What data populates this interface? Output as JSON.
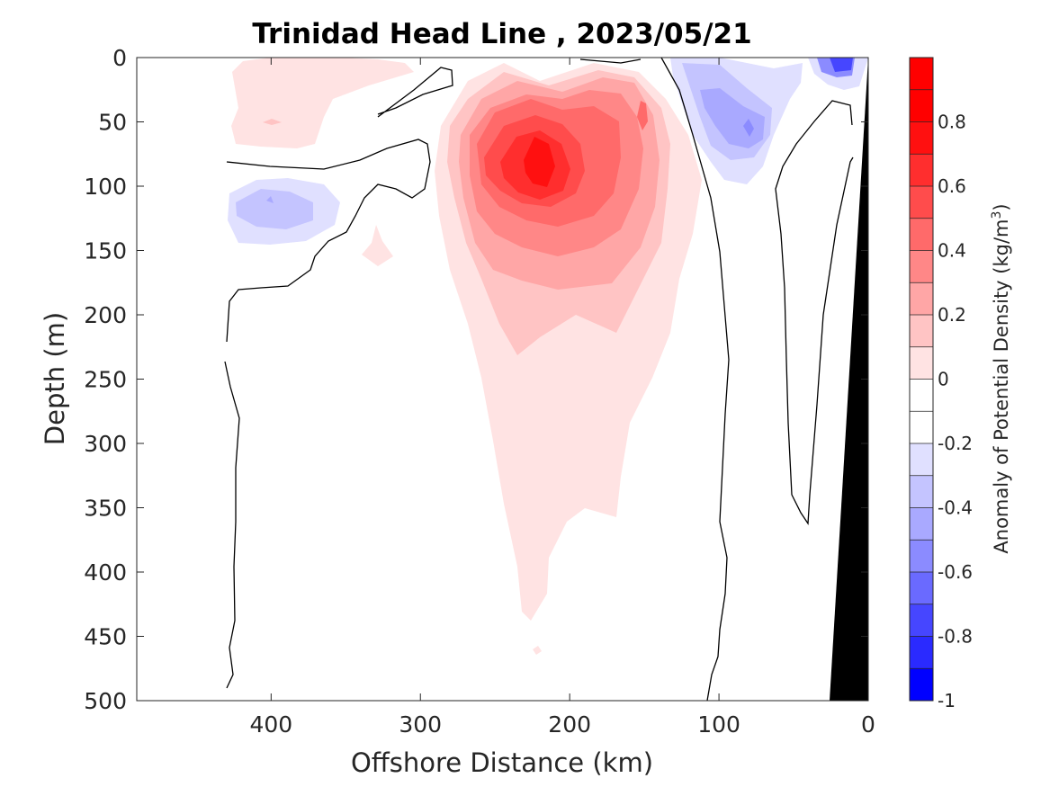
{
  "chart_data": {
    "type": "contourf",
    "title": "Trinidad Head Line , 2023/05/21",
    "xlabel": "Offshore Distance (km)",
    "ylabel": "Depth (m)",
    "xlim": [
      490,
      0
    ],
    "ylim": [
      500,
      0
    ],
    "xticks": [
      400,
      300,
      200,
      100,
      0
    ],
    "yticks": [
      0,
      50,
      100,
      150,
      200,
      250,
      300,
      350,
      400,
      450,
      500
    ],
    "colorbar": {
      "label": "Anomaly of Potential Density (kg/m",
      "label_superscript": "3",
      "label_close": ")",
      "clim": [
        -1,
        1
      ],
      "levels": [
        -1,
        -0.9,
        -0.8,
        -0.7,
        -0.6,
        -0.5,
        -0.4,
        -0.3,
        -0.2,
        -0.1,
        0,
        0.1,
        0.2,
        0.3,
        0.4,
        0.5,
        0.6,
        0.7,
        0.8,
        0.9,
        1
      ],
      "ticks": [
        -1,
        -0.8,
        -0.6,
        -0.4,
        -0.2,
        0,
        0.2,
        0.4,
        0.6,
        0.8
      ],
      "colors": [
        "#0000ff",
        "#2a2aff",
        "#4646ff",
        "#6a6aff",
        "#8b8bff",
        "#a9a9ff",
        "#c4c4ff",
        "#e0e0ff",
        "#ffffff",
        "#ffffff",
        "#ffe3e3",
        "#ffc4c4",
        "#ffa6a6",
        "#ff8787",
        "#ff6a6a",
        "#ff4c4c",
        "#ff2e2e",
        "#ff1010",
        "#ff0000",
        "#ff0000"
      ]
    },
    "positive_features": [
      {
        "label": "main subsurface maximum",
        "center_x_km": 220,
        "center_depth_m": 85,
        "peak": 0.9,
        "depth_extent_m": [
          5,
          440
        ]
      },
      {
        "label": "secondary maximum",
        "center_x_km": 150,
        "center_depth_m": 40,
        "peak": 0.5
      },
      {
        "label": "offshore upper patch",
        "center_x_km": 400,
        "center_depth_m": 40,
        "peak": 0.2
      }
    ],
    "negative_features": [
      {
        "label": "nearshore upper minimum",
        "center_x_km": 80,
        "center_depth_m": 50,
        "peak": -0.4
      },
      {
        "label": "surface minimum",
        "center_x_km": 25,
        "center_depth_m": 5,
        "peak": -0.8
      },
      {
        "label": "offshore subsurface minimum",
        "center_x_km": 400,
        "center_depth_m": 115,
        "peak": -0.3
      }
    ],
    "bathymetry": {
      "label": "continental slope",
      "color": "#000000",
      "top_km": 0,
      "bottom_km": 27,
      "depth_m": [
        0,
        500
      ]
    }
  }
}
